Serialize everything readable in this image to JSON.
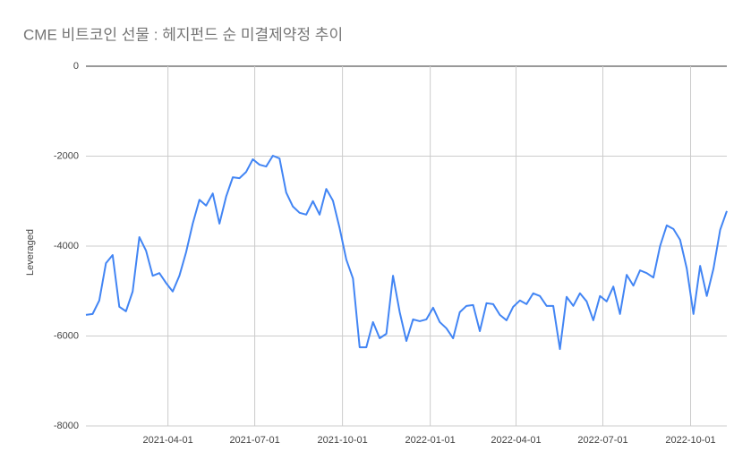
{
  "chart_data": {
    "type": "line",
    "title": "CME 비트코인 선물 : 헤지펀드 순 미결제약정 추이",
    "y_label": "Leveraged",
    "x": [
      "2021-01-05",
      "2021-01-12",
      "2021-01-19",
      "2021-01-26",
      "2021-02-02",
      "2021-02-09",
      "2021-02-16",
      "2021-02-23",
      "2021-03-02",
      "2021-03-09",
      "2021-03-16",
      "2021-03-23",
      "2021-03-30",
      "2021-04-06",
      "2021-04-13",
      "2021-04-20",
      "2021-04-27",
      "2021-05-04",
      "2021-05-11",
      "2021-05-18",
      "2021-05-25",
      "2021-06-01",
      "2021-06-08",
      "2021-06-15",
      "2021-06-22",
      "2021-06-29",
      "2021-07-06",
      "2021-07-13",
      "2021-07-20",
      "2021-07-27",
      "2021-08-03",
      "2021-08-10",
      "2021-08-17",
      "2021-08-24",
      "2021-08-31",
      "2021-09-07",
      "2021-09-14",
      "2021-09-21",
      "2021-09-28",
      "2021-10-05",
      "2021-10-12",
      "2021-10-19",
      "2021-10-26",
      "2021-11-02",
      "2021-11-09",
      "2021-11-16",
      "2021-11-23",
      "2021-11-30",
      "2021-12-07",
      "2021-12-14",
      "2021-12-21",
      "2021-12-28",
      "2022-01-04",
      "2022-01-11",
      "2022-01-18",
      "2022-01-25",
      "2022-02-01",
      "2022-02-08",
      "2022-02-15",
      "2022-02-22",
      "2022-03-01",
      "2022-03-08",
      "2022-03-15",
      "2022-03-22",
      "2022-03-29",
      "2022-04-05",
      "2022-04-12",
      "2022-04-19",
      "2022-04-26",
      "2022-05-03",
      "2022-05-10",
      "2022-05-17",
      "2022-05-24",
      "2022-05-31",
      "2022-06-07",
      "2022-06-14",
      "2022-06-21",
      "2022-06-28",
      "2022-07-05",
      "2022-07-12",
      "2022-07-19",
      "2022-07-26",
      "2022-08-02",
      "2022-08-09",
      "2022-08-16",
      "2022-08-23",
      "2022-08-30",
      "2022-09-06",
      "2022-09-13",
      "2022-09-20",
      "2022-09-27",
      "2022-10-04",
      "2022-10-11",
      "2022-10-18",
      "2022-10-25",
      "2022-11-01",
      "2022-11-08"
    ],
    "series": [
      {
        "name": "Leveraged",
        "color": "#4285f4",
        "values": [
          -5530,
          -5510,
          -5210,
          -4380,
          -4200,
          -5350,
          -5450,
          -5010,
          -3800,
          -4100,
          -4660,
          -4600,
          -4820,
          -5010,
          -4660,
          -4140,
          -3500,
          -2970,
          -3100,
          -2830,
          -3500,
          -2900,
          -2470,
          -2490,
          -2350,
          -2070,
          -2190,
          -2230,
          -1990,
          -2050,
          -2810,
          -3120,
          -3260,
          -3300,
          -3000,
          -3300,
          -2730,
          -2990,
          -3600,
          -4300,
          -4720,
          -6250,
          -6250,
          -5690,
          -6050,
          -5950,
          -4660,
          -5470,
          -6110,
          -5630,
          -5670,
          -5630,
          -5370,
          -5690,
          -5830,
          -6050,
          -5470,
          -5330,
          -5310,
          -5890,
          -5270,
          -5290,
          -5530,
          -5650,
          -5350,
          -5210,
          -5290,
          -5050,
          -5110,
          -5330,
          -5330,
          -6290,
          -5130,
          -5330,
          -5050,
          -5230,
          -5650,
          -5110,
          -5230,
          -4900,
          -5510,
          -4640,
          -4880,
          -4540,
          -4600,
          -4700,
          -4000,
          -3540,
          -3620,
          -3860,
          -4500,
          -5510,
          -4440,
          -5110,
          -4500,
          -3640,
          -3220
        ]
      }
    ],
    "xlim": [
      "2021-01-05",
      "2022-11-08"
    ],
    "xticks": [
      "2021-04-01",
      "2021-07-01",
      "2021-10-01",
      "2022-01-01",
      "2022-04-01",
      "2022-07-01",
      "2022-10-01"
    ],
    "ylim": [
      -8000,
      0
    ],
    "yticks": [
      0,
      -2000,
      -4000,
      -6000,
      -8000
    ],
    "grid": true
  }
}
